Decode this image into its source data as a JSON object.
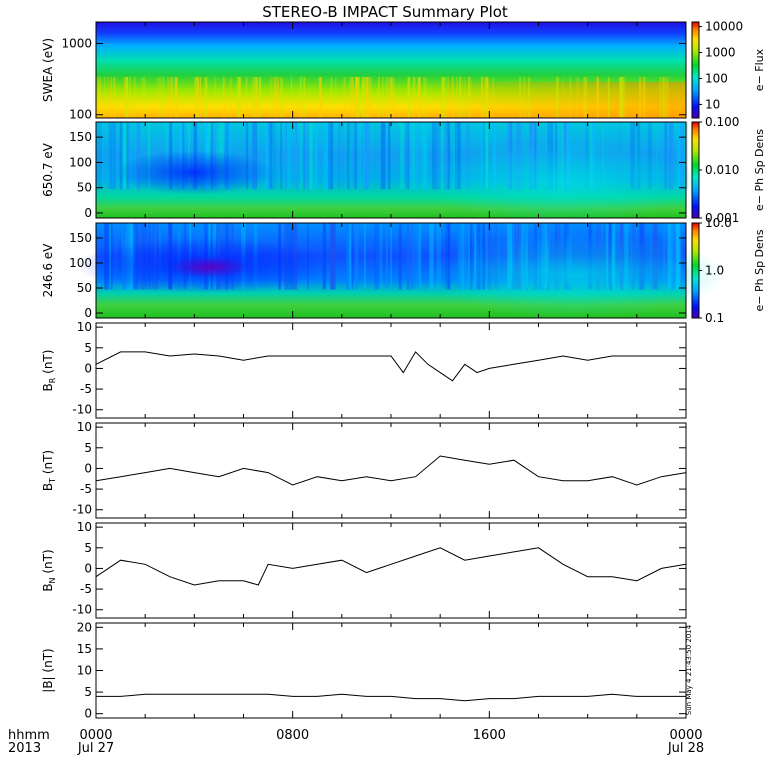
{
  "title": "STEREO-B IMPACT Summary Plot",
  "timestamp": "Sun May  4 21:43:50 2014",
  "bottom_left": {
    "line1": "hhmm",
    "line2": "2013"
  },
  "time_ticks": [
    {
      "hhmm": "0000",
      "date": "Jul 27"
    },
    {
      "hhmm": "0800",
      "date": ""
    },
    {
      "hhmm": "1600",
      "date": ""
    },
    {
      "hhmm": "0000",
      "date": "Jul 28"
    }
  ],
  "chart_data": [
    {
      "type": "heatmap",
      "id": "swea",
      "ylabel": "SWEA (eV)",
      "yscale": "log",
      "ylim": [
        90,
        2000
      ],
      "yticks": [
        {
          "v": 100,
          "label": "100"
        },
        {
          "v": 1000,
          "label": "1000"
        }
      ],
      "colorbar": {
        "label": "e− Flux",
        "scale": "log",
        "range": [
          3,
          15000
        ],
        "ticks": [
          {
            "v": 10,
            "label": "10"
          },
          {
            "v": 100,
            "label": "100"
          },
          {
            "v": 1000,
            "label": "1000"
          },
          {
            "v": 10000,
            "label": "10000"
          }
        ]
      }
    },
    {
      "type": "heatmap",
      "id": "pad650",
      "ylabel": "650.7 eV",
      "yscale": "linear",
      "ylim": [
        -10,
        180
      ],
      "yticks": [
        {
          "v": 0,
          "label": "0"
        },
        {
          "v": 50,
          "label": "50"
        },
        {
          "v": 100,
          "label": "100"
        },
        {
          "v": 150,
          "label": "150"
        }
      ],
      "colorbar": {
        "label": "e− Ph Sp Dens",
        "scale": "log",
        "range": [
          0.001,
          0.1
        ],
        "ticks": [
          {
            "v": 0.001,
            "label": "0.001"
          },
          {
            "v": 0.01,
            "label": "0.010"
          },
          {
            "v": 0.1,
            "label": "0.100"
          }
        ]
      }
    },
    {
      "type": "heatmap",
      "id": "pad246",
      "ylabel": "246.6 eV",
      "yscale": "linear",
      "ylim": [
        -10,
        180
      ],
      "yticks": [
        {
          "v": 0,
          "label": "0"
        },
        {
          "v": 50,
          "label": "50"
        },
        {
          "v": 100,
          "label": "100"
        },
        {
          "v": 150,
          "label": "150"
        }
      ],
      "colorbar": {
        "label": "e− Ph Sp Dens",
        "scale": "log",
        "range": [
          0.1,
          10
        ],
        "ticks": [
          {
            "v": 0.1,
            "label": "0.1"
          },
          {
            "v": 1,
            "label": "1.0"
          },
          {
            "v": 10,
            "label": "10.0"
          }
        ]
      }
    },
    {
      "type": "line",
      "id": "br",
      "ylabel": "B",
      "ysub": "R",
      "yunit": "(nT)",
      "ylim": [
        -12,
        11
      ],
      "yticks": [
        {
          "v": -10,
          "label": "-10"
        },
        {
          "v": -5,
          "label": "-5"
        },
        {
          "v": 0,
          "label": "0"
        },
        {
          "v": 5,
          "label": "5"
        },
        {
          "v": 10,
          "label": "10"
        }
      ],
      "x_hours": [
        0,
        1,
        2,
        3,
        4,
        5,
        6,
        7,
        8,
        9,
        10,
        11,
        12,
        12.5,
        13,
        13.5,
        14,
        14.5,
        15,
        15.5,
        16,
        17,
        18,
        19,
        20,
        21,
        22,
        23,
        24
      ],
      "y": [
        1,
        4,
        4,
        3,
        3.5,
        3,
        2,
        3,
        3,
        3,
        3,
        3,
        3,
        -1,
        4,
        1,
        -1,
        -3,
        1,
        -1,
        0,
        1,
        2,
        3,
        2,
        3,
        3,
        3,
        3
      ]
    },
    {
      "type": "line",
      "id": "bt",
      "ylabel": "B",
      "ysub": "T",
      "yunit": "(nT)",
      "ylim": [
        -12,
        11
      ],
      "yticks": [
        {
          "v": -10,
          "label": "-10"
        },
        {
          "v": -5,
          "label": "-5"
        },
        {
          "v": 0,
          "label": "0"
        },
        {
          "v": 5,
          "label": "5"
        },
        {
          "v": 10,
          "label": "10"
        }
      ],
      "x_hours": [
        0,
        1,
        2,
        3,
        4,
        5,
        6,
        7,
        8,
        9,
        10,
        11,
        12,
        13,
        14,
        15,
        16,
        17,
        18,
        19,
        20,
        21,
        22,
        23,
        24
      ],
      "y": [
        -3,
        -2,
        -1,
        0,
        -1,
        -2,
        0,
        -1,
        -4,
        -2,
        -3,
        -2,
        -3,
        -2,
        3,
        2,
        1,
        2,
        -2,
        -3,
        -3,
        -2,
        -4,
        -2,
        -1
      ]
    },
    {
      "type": "line",
      "id": "bn",
      "ylabel": "B",
      "ysub": "N",
      "yunit": "(nT)",
      "ylim": [
        -12,
        11
      ],
      "yticks": [
        {
          "v": -10,
          "label": "-10"
        },
        {
          "v": -5,
          "label": "-5"
        },
        {
          "v": 0,
          "label": "0"
        },
        {
          "v": 5,
          "label": "5"
        },
        {
          "v": 10,
          "label": "10"
        }
      ],
      "x_hours": [
        0,
        1,
        2,
        3,
        4,
        5,
        6,
        6.6,
        7,
        8,
        9,
        10,
        11,
        12,
        13,
        14,
        15,
        16,
        17,
        18,
        19,
        20,
        21,
        22,
        23,
        24
      ],
      "y": [
        -2,
        2,
        1,
        -2,
        -4,
        -3,
        -3,
        -4,
        1,
        0,
        1,
        2,
        -1,
        1,
        3,
        5,
        2,
        3,
        4,
        5,
        1,
        -2,
        -2,
        -3,
        0,
        1
      ]
    },
    {
      "type": "line",
      "id": "bmag",
      "ylabel": "|B| (nT)",
      "ylim": [
        -1,
        21
      ],
      "yticks": [
        {
          "v": 0,
          "label": "0"
        },
        {
          "v": 5,
          "label": "5"
        },
        {
          "v": 10,
          "label": "10"
        },
        {
          "v": 15,
          "label": "15"
        },
        {
          "v": 20,
          "label": "20"
        }
      ],
      "x_hours": [
        0,
        1,
        2,
        3,
        4,
        5,
        6,
        7,
        8,
        9,
        10,
        11,
        12,
        13,
        14,
        15,
        16,
        17,
        18,
        19,
        20,
        21,
        22,
        23,
        24
      ],
      "y": [
        4,
        4,
        4.5,
        4.5,
        4.5,
        4.5,
        4.5,
        4.5,
        4,
        4,
        4.5,
        4,
        4,
        3.5,
        3.5,
        3,
        3.5,
        3.5,
        4,
        4,
        4,
        4.5,
        4,
        4,
        4
      ]
    }
  ]
}
